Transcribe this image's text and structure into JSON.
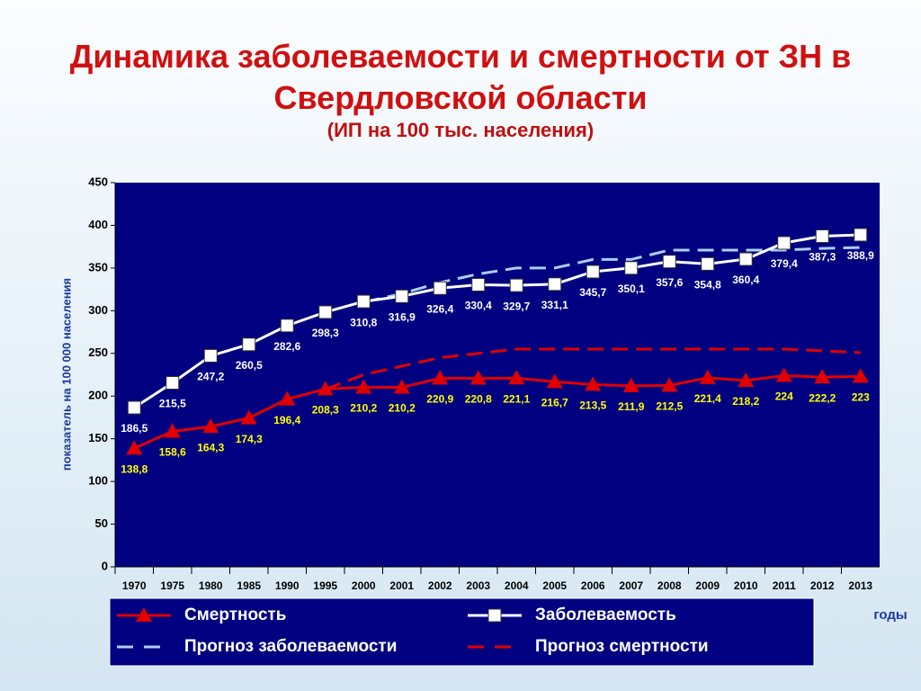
{
  "chart_data": {
    "type": "line",
    "title": "Динамика заболеваемости и смертности от ЗН в Свердловской области",
    "subtitle": "(ИП на 100 тыс. населения)",
    "y_label": "показатель на 100 000 населения",
    "x_label": "годы",
    "categories": [
      "1970",
      "1975",
      "1980",
      "1985",
      "1990",
      "1995",
      "2000",
      "2001",
      "2002",
      "2003",
      "2004",
      "2005",
      "2006",
      "2007",
      "2008",
      "2009",
      "2010",
      "2011",
      "2012",
      "2013"
    ],
    "ylim": [
      0,
      450
    ],
    "yticks": [
      0,
      50,
      100,
      150,
      200,
      250,
      300,
      350,
      400,
      450
    ],
    "series": [
      {
        "name": "Смертность",
        "color": "#e00000",
        "marker": "triangle",
        "label_color": "#ffff00",
        "values": [
          138.8,
          158.6,
          164.3,
          174.3,
          196.4,
          208.3,
          210.2,
          210.2,
          220.9,
          220.8,
          221.1,
          216.7,
          213.5,
          211.9,
          212.5,
          221.4,
          218.2,
          224,
          222.2,
          223
        ],
        "value_labels": [
          "138,8",
          "158,6",
          "164,3",
          "174,3",
          "196,4",
          "208,3",
          "210,2",
          "210,2",
          "220,9",
          "220,8",
          "221,1",
          "216,7",
          "213,5",
          "211,9",
          "212,5",
          "221,4",
          "218,2",
          "224",
          "222,2",
          "223"
        ]
      },
      {
        "name": "Заболеваемость",
        "color": "#ffffff",
        "marker": "square",
        "label_color": "#ffffff",
        "values": [
          186.5,
          215.5,
          247.2,
          260.5,
          282.6,
          298.3,
          310.8,
          316.9,
          326.4,
          330.4,
          329.7,
          331.1,
          345.7,
          350.1,
          357.6,
          354.8,
          360.4,
          379.4,
          387.3,
          388.9
        ],
        "value_labels": [
          "186,5",
          "215,5",
          "247,2",
          "260,5",
          "282,6",
          "298,3",
          "310,8",
          "316,9",
          "326,4",
          "330,4",
          "329,7",
          "331,1",
          "345,7",
          "350,1",
          "357,6",
          "354,8",
          "360,4",
          "379,4",
          "387,3",
          "388,9"
        ]
      },
      {
        "name": "Прогноз заболеваемости",
        "color": "#a8d0f5",
        "dashed": true,
        "values": [
          null,
          null,
          null,
          null,
          null,
          null,
          310,
          320,
          333,
          343,
          350,
          350,
          360,
          360,
          371,
          371,
          371,
          371,
          373,
          374
        ]
      },
      {
        "name": "Прогноз смертности",
        "color": "#e00000",
        "dashed": true,
        "values": [
          null,
          null,
          null,
          null,
          null,
          208,
          225,
          235,
          245,
          250,
          255,
          255,
          255,
          255,
          255,
          255,
          255,
          255,
          253,
          251
        ]
      }
    ]
  }
}
